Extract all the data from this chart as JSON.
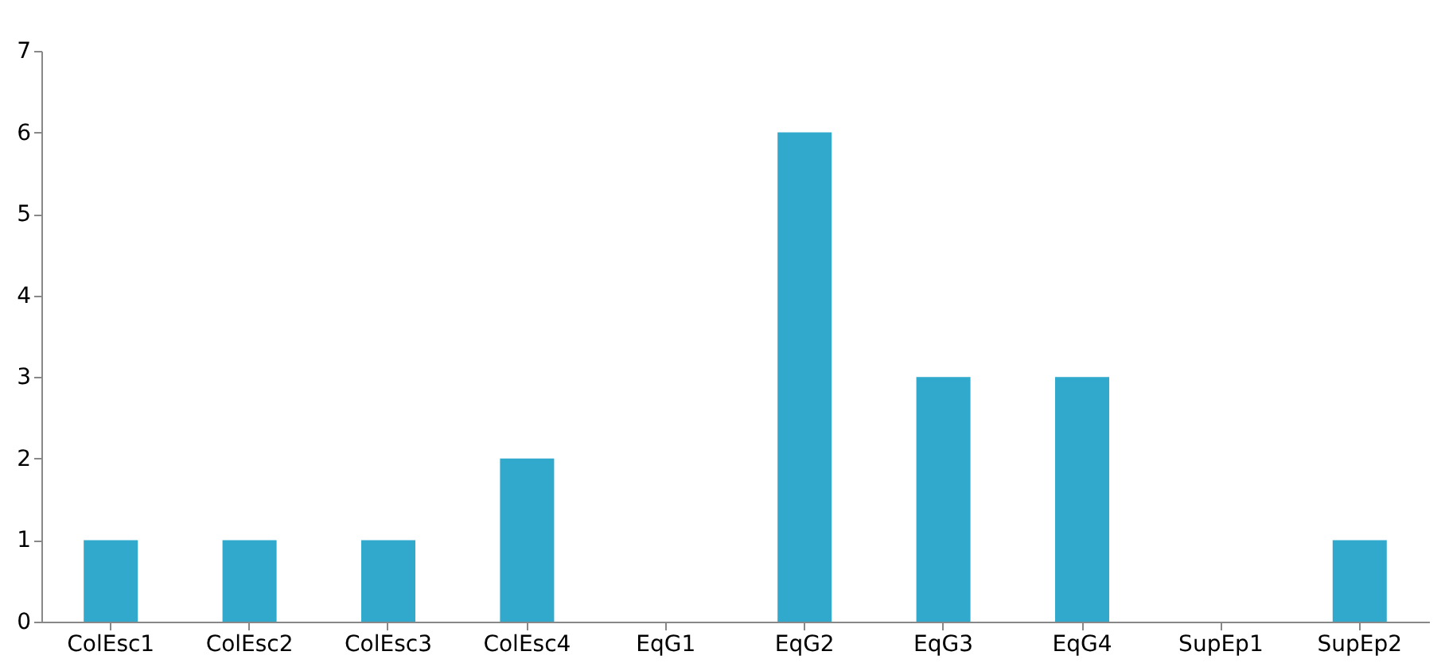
{
  "chart_data": {
    "type": "bar",
    "categories": [
      "ColEsc1",
      "ColEsc2",
      "ColEsc3",
      "ColEsc4",
      "EqG1",
      "EqG2",
      "EqG3",
      "EqG4",
      "SupEp1",
      "SupEp2"
    ],
    "values": [
      1,
      1,
      1,
      2,
      0,
      6,
      3,
      3,
      0,
      1
    ],
    "color": "#31a9cc",
    "ylim": [
      0,
      7
    ],
    "yticks": [
      0,
      1,
      2,
      3,
      4,
      5,
      6,
      7
    ],
    "grid": false
  }
}
